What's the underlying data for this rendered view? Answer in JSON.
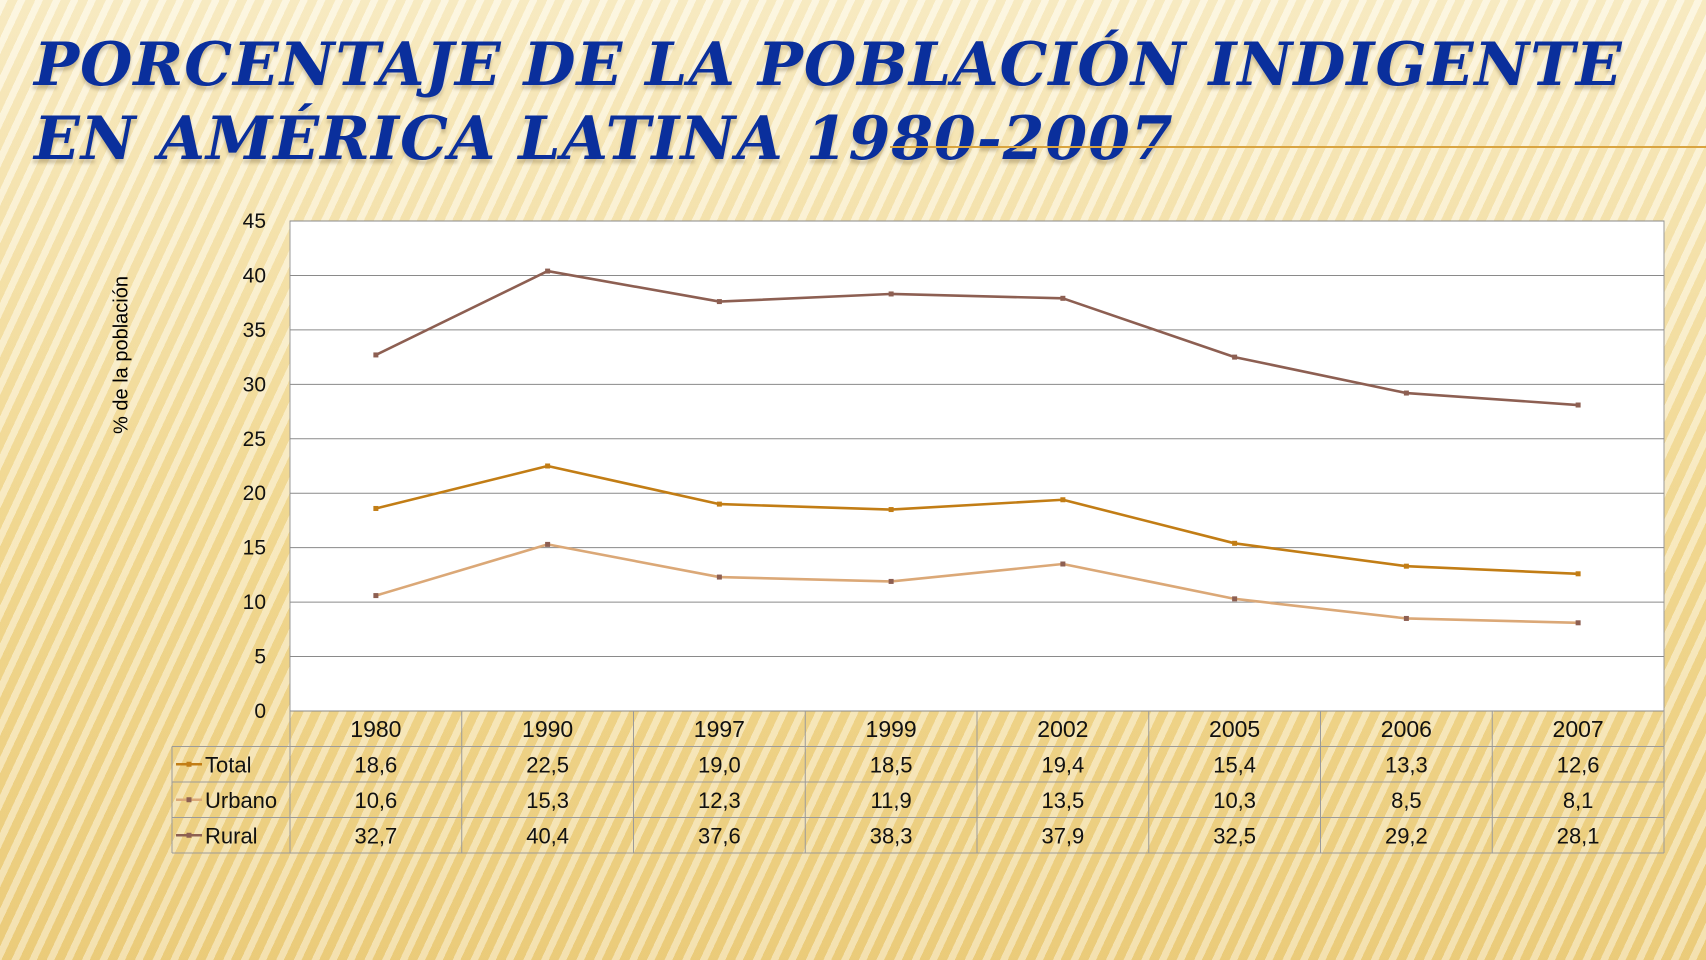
{
  "title": "Porcentaje de la población indigente en América Latina 1980-2007",
  "chart_data": {
    "type": "line",
    "title": "Porcentaje de la población indigente en América Latina 1980-2007",
    "ylabel": "% de la población",
    "xlabel": "",
    "ylim": [
      0,
      45
    ],
    "yticks": [
      0,
      5,
      10,
      15,
      20,
      25,
      30,
      35,
      40,
      45
    ],
    "grid": true,
    "legend": "data-table",
    "categories": [
      "1980",
      "1990",
      "1997",
      "1999",
      "2002",
      "2005",
      "2006",
      "2007"
    ],
    "series": [
      {
        "name": "Total",
        "color": "#c27d15",
        "values": [
          18.6,
          22.5,
          19.0,
          18.5,
          19.4,
          15.4,
          13.3,
          12.6
        ],
        "labels": [
          "18,6",
          "22,5",
          "19,0",
          "18,5",
          "19,4",
          "15,4",
          "13,3",
          "12,6"
        ]
      },
      {
        "name": "Urbano",
        "color": "#dba877",
        "values": [
          10.6,
          15.3,
          12.3,
          11.9,
          13.5,
          10.3,
          8.5,
          8.1
        ],
        "labels": [
          "10,6",
          "15,3",
          "12,3",
          "11,9",
          "13,5",
          "10,3",
          "8,5",
          "8,1"
        ]
      },
      {
        "name": "Rural",
        "color": "#8d5f52",
        "values": [
          32.7,
          40.4,
          37.6,
          38.3,
          37.9,
          32.5,
          29.2,
          28.1
        ],
        "labels": [
          "32,7",
          "40,4",
          "37,6",
          "38,3",
          "37,9",
          "32,5",
          "29,2",
          "28,1"
        ]
      }
    ]
  }
}
